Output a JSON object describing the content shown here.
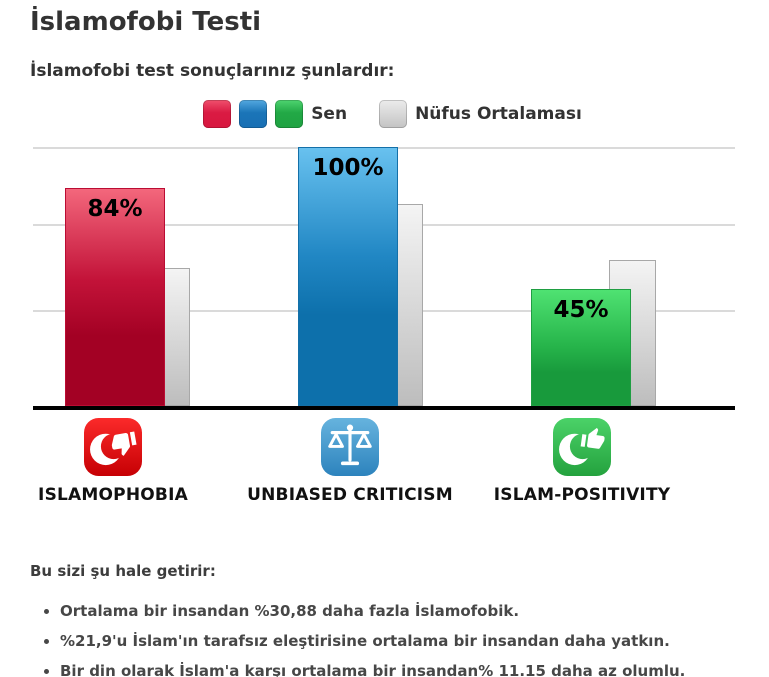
{
  "page": {
    "title": "İslamofobi Testi",
    "subtitle": "İslamofobi test sonuçlarınız şunlardır:"
  },
  "legend": {
    "you_label": "Sen",
    "average_label": "Nüfus Ortalaması",
    "you_swatch_colors": [
      "#da1b43",
      "#1b75b8",
      "#22a946"
    ],
    "average_swatch_color": "#c3c3c3"
  },
  "chart_data": {
    "type": "bar",
    "categories": [
      "ISLAMOPHOBIA",
      "UNBIASED CRITICISM",
      "ISLAM-POSITIVITY"
    ],
    "series": [
      {
        "name": "Sen",
        "values": [
          84,
          100,
          45
        ],
        "labels": [
          "84%",
          "100%",
          "45%"
        ],
        "colors": [
          "#b5082c",
          "#0d70ab",
          "#1fa846"
        ]
      },
      {
        "name": "Nüfus Ortalaması",
        "values": [
          53.1,
          78.1,
          56.2
        ],
        "color": "#c9c9c9"
      }
    ],
    "ylim": [
      0,
      100
    ],
    "grid": true,
    "gridline_color": "#dadada",
    "axis_color": "#000000",
    "value_label_format": "percent",
    "legend_position": "top"
  },
  "categories": [
    {
      "label": "ISLAMOPHOBIA",
      "icon": "crescent-thumbs-down-icon",
      "color": "#e01414"
    },
    {
      "label": "UNBIASED CRITICISM",
      "icon": "scales-of-justice-icon",
      "color": "#3f97cc"
    },
    {
      "label": "ISLAM-POSITIVITY",
      "icon": "crescent-thumbs-up-icon",
      "color": "#30b54d"
    }
  ],
  "results": {
    "heading": "Bu sizi şu hale getirir:",
    "bullets": [
      "Ortalama bir insandan %30,88 daha fazla İslamofobik.",
      "%21,9'u İslam'ın tarafsız eleştirisine ortalama bir insandan daha yatkın.",
      "Bir din olarak İslam'a karşı ortalama bir insandan% 11.15 daha az olumlu."
    ]
  }
}
